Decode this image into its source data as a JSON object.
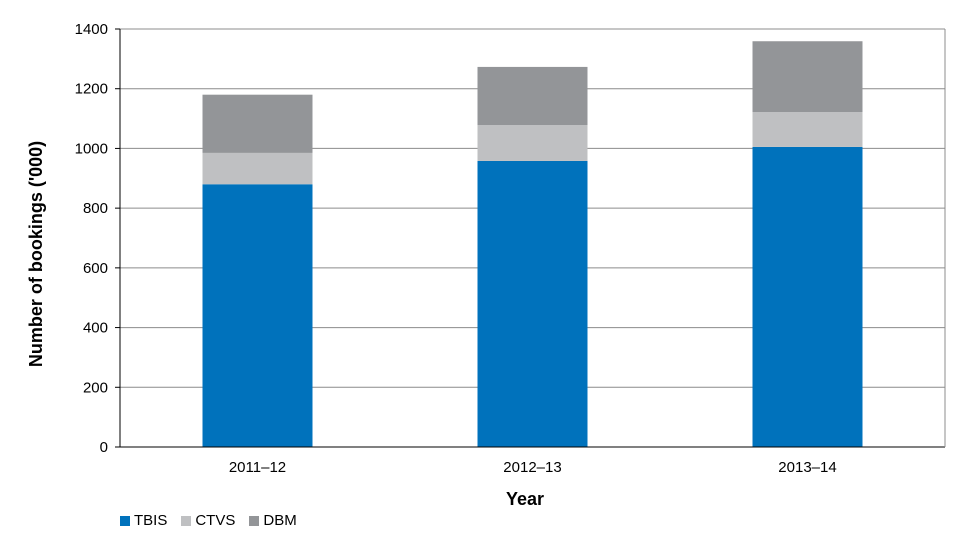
{
  "chart_data": {
    "type": "bar",
    "stacked": true,
    "categories": [
      "2011–12",
      "2012–13",
      "2013–14"
    ],
    "series": [
      {
        "name": "TBIS",
        "values": [
          880,
          958,
          1005
        ],
        "color": "#0072bc"
      },
      {
        "name": "CTVS",
        "values": [
          105,
          120,
          117
        ],
        "color": "#bfc0c2"
      },
      {
        "name": "DBM",
        "values": [
          195,
          195,
          237
        ],
        "color": "#939598"
      }
    ],
    "xlabel": "Year",
    "ylabel": "Number of bookings ('000)",
    "ylim": [
      0,
      1400
    ],
    "yticks": [
      "0",
      "200",
      "400",
      "600",
      "800",
      "1000",
      "1200",
      "1400"
    ],
    "grid": true,
    "legend_position": "bottom-left"
  }
}
